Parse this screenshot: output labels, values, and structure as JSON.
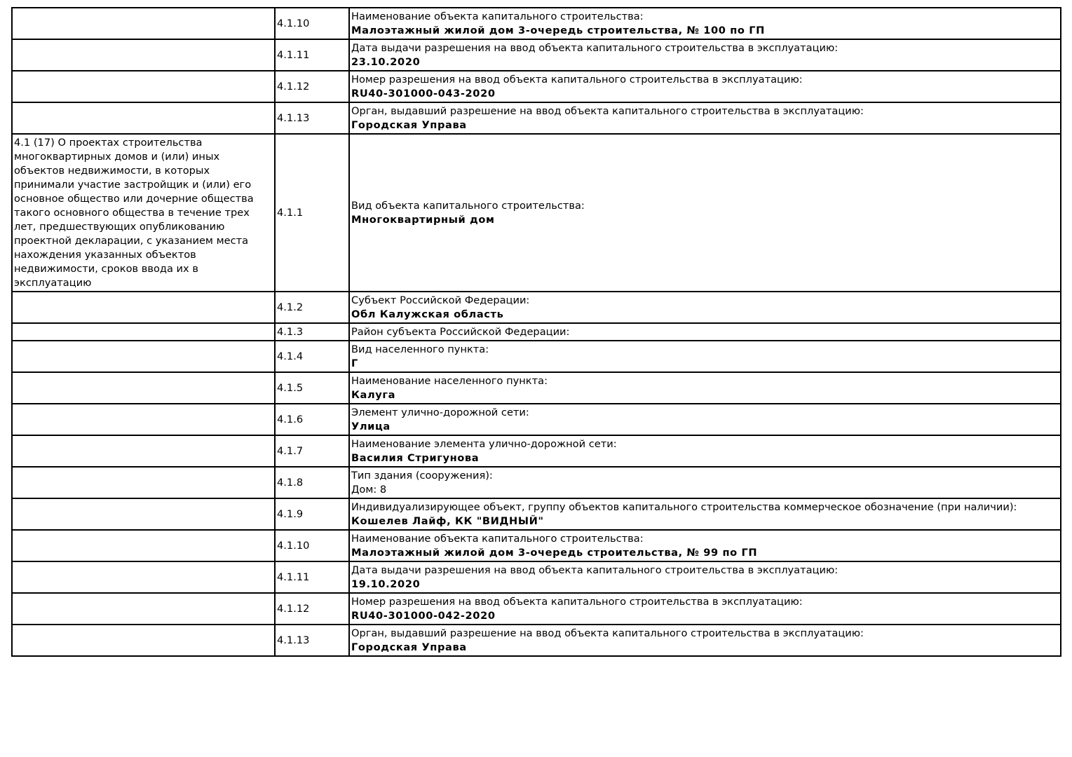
{
  "table": {
    "rows": [
      {
        "section": "",
        "code": "4.1.10",
        "label": "Наименование объекта капитального строительства:",
        "value": "Малоэтажный жилой дом 3-очередь строительства, № 100 по ГП"
      },
      {
        "section": "",
        "code": "4.1.11",
        "label": "Дата выдачи разрешения на ввод объекта капитального строительства в эксплуатацию:",
        "value": "23.10.2020"
      },
      {
        "section": "",
        "code": "4.1.12",
        "label": "Номер разрешения на ввод объекта капитального строительства в эксплуатацию:",
        "value": "RU40-301000-043-2020"
      },
      {
        "section": "",
        "code": "4.1.13",
        "label": "Орган, выдавший разрешение на ввод объекта капитального строительства в эксплуатацию:",
        "value": "Городская Управа"
      },
      {
        "section": "4.1 (17) О проектах строительства многоквартирных домов и (или) иных объектов недвижимости, в которых принимали участие застройщик и (или) его основное общество или дочерние общества такого основного общества в течение трех лет, предшествующих опубликованию проектной декларации, с указанием места нахождения указанных объектов недвижимости, сроков ввода их в эксплуатацию",
        "code": "4.1.1",
        "label": "Вид объекта капитального строительства:",
        "value": "Многоквартирный дом"
      },
      {
        "section": "",
        "code": "4.1.2",
        "label": "Субъект Российской Федерации:",
        "value": "Обл Калужская область"
      },
      {
        "section": "",
        "code": "4.1.3",
        "label": "Район субъекта Российской Федерации:",
        "value": ""
      },
      {
        "section": "",
        "code": "4.1.4",
        "label": "Вид населенного пункта:",
        "value": "Г"
      },
      {
        "section": "",
        "code": "4.1.5",
        "label": "Наименование населенного пункта:",
        "value": "Калуга"
      },
      {
        "section": "",
        "code": "4.1.6",
        "label": "Элемент улично-дорожной сети:",
        "value": "Улица"
      },
      {
        "section": "",
        "code": "4.1.7",
        "label": "Наименование элемента улично-дорожной сети:",
        "value": "Василия Стригунова"
      },
      {
        "section": "",
        "code": "4.1.8",
        "label": "Тип здания (сооружения):",
        "value": "Дом: 8",
        "plain": true
      },
      {
        "section": "",
        "code": "4.1.9",
        "label": "Индивидуализирующее объект, группу объектов капитального строительства коммерческое обозначение (при наличии):",
        "value": "Кошелев Лайф, КК \"ВИДНЫЙ\""
      },
      {
        "section": "",
        "code": "4.1.10",
        "label": "Наименование объекта капитального строительства:",
        "value": "Малоэтажный жилой дом 3-очередь строительства, № 99 по ГП"
      },
      {
        "section": "",
        "code": "4.1.11",
        "label": "Дата выдачи разрешения на ввод объекта капитального строительства в эксплуатацию:",
        "value": "19.10.2020"
      },
      {
        "section": "",
        "code": "4.1.12",
        "label": "Номер разрешения на ввод объекта капитального строительства в эксплуатацию:",
        "value": "RU40-301000-042-2020"
      },
      {
        "section": "",
        "code": "4.1.13",
        "label": "Орган, выдавший разрешение на ввод объекта капитального строительства в эксплуатацию:",
        "value": "Городская Управа"
      }
    ]
  }
}
